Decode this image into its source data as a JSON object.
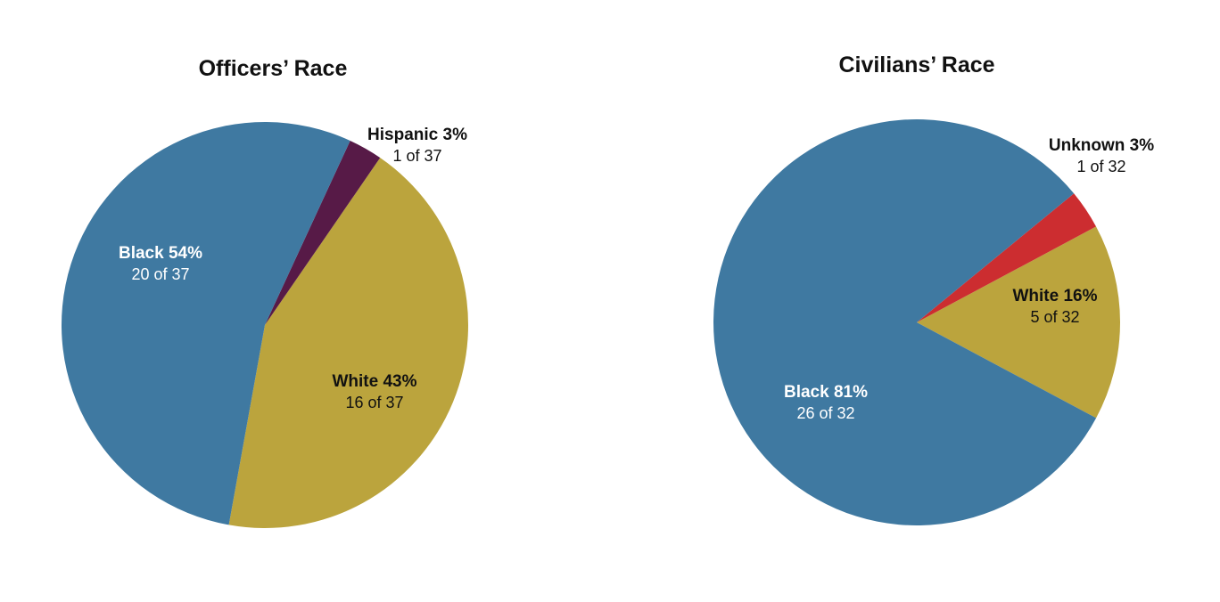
{
  "chart_data": [
    {
      "type": "pie",
      "title": "Officers’ Race",
      "slices": [
        {
          "name": "Black",
          "value": 20,
          "percent_label": "54%",
          "count_label": "20 of 37",
          "color": "#3f79a1"
        },
        {
          "name": "Hispanic",
          "value": 1,
          "percent_label": "3%",
          "count_label": "1 of 37",
          "color": "#571a47"
        },
        {
          "name": "White",
          "value": 16,
          "percent_label": "43%",
          "count_label": "16 of 37",
          "color": "#bba43d"
        }
      ]
    },
    {
      "type": "pie",
      "title": "Civilians’ Race",
      "slices": [
        {
          "name": "Black",
          "value": 26,
          "percent_label": "81%",
          "count_label": "26 of 32",
          "color": "#3f79a1"
        },
        {
          "name": "Unknown",
          "value": 1,
          "percent_label": "3%",
          "count_label": "1 of 32",
          "color": "#cc2d30"
        },
        {
          "name": "White",
          "value": 5,
          "percent_label": "16%",
          "count_label": "5 of 32",
          "color": "#bba43d"
        }
      ]
    }
  ]
}
